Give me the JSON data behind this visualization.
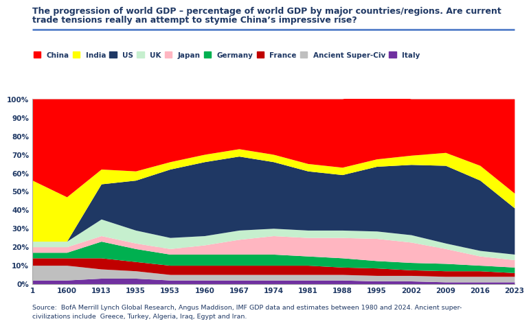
{
  "title_line1": "The progression of world GDP – percentage of world GDP by major countries/regions. Are current",
  "title_line2": "trade tensions really an attempt to stymie China’s impressive rise?",
  "source_text": "Source:  BofA Merrill Lynch Global Research, Angus Maddison, IMF GDP data and estimates between 1980 and 2024. Ancient super-\ncivilizations include  Greece, Turkey, Algeria, Iraq, Egypt and Iran.",
  "legend_labels": [
    "China",
    "India",
    "US",
    "UK",
    "Japan",
    "Germany",
    "France",
    "Ancient Super-Civ",
    "Italy"
  ],
  "colors": {
    "China": "#FF0000",
    "India": "#FFFF00",
    "US": "#1F3864",
    "UK": "#C6EFCE",
    "Japan": "#FFB6C1",
    "Germany": "#00B050",
    "France": "#C00000",
    "Ancient Super-Civ": "#BFBFBF",
    "Italy": "#7030A0"
  },
  "x_labels": [
    "1",
    "1600",
    "1913",
    "1935",
    "1953",
    "1960",
    "1967",
    "1974",
    "1981",
    "1988",
    "1995",
    "2002",
    "2009",
    "2016",
    "2023"
  ],
  "stack_order": [
    "Italy",
    "Ancient_Super_Civ",
    "France",
    "Germany",
    "Japan",
    "UK",
    "US",
    "India",
    "China"
  ],
  "label_map": {
    "Italy": "Italy",
    "Ancient_Super_Civ": "Ancient Super-Civ",
    "France": "France",
    "Germany": "Germany",
    "Japan": "Japan",
    "UK": "UK",
    "US": "US",
    "India": "India",
    "China": "China"
  },
  "data": {
    "Italy": [
      2,
      2,
      3,
      3,
      2,
      2,
      2,
      2,
      2,
      2,
      1.5,
      1.5,
      1,
      1,
      1
    ],
    "Ancient_Super_Civ": [
      8,
      8,
      5,
      4,
      3,
      3,
      3,
      3,
      3,
      3,
      3,
      3,
      3,
      3,
      3
    ],
    "France": [
      4,
      4,
      6,
      5,
      5,
      5,
      5,
      5,
      5,
      4,
      4,
      3,
      3,
      3,
      2
    ],
    "Germany": [
      3,
      3,
      9,
      7,
      6,
      6,
      6,
      6,
      5,
      5,
      4,
      4,
      4,
      3,
      3
    ],
    "Japan": [
      3,
      3,
      3,
      3,
      3,
      5,
      8,
      10,
      10,
      11,
      12,
      11,
      8,
      5,
      4
    ],
    "UK": [
      3,
      3,
      9,
      7,
      6,
      5,
      5,
      4,
      4,
      4,
      4,
      4,
      3,
      3,
      3
    ],
    "US": [
      0,
      0,
      19,
      27,
      37,
      40,
      40,
      36,
      32,
      30,
      35,
      38,
      42,
      38,
      25
    ],
    "India": [
      33,
      24,
      8,
      5,
      4,
      4,
      4,
      4,
      4,
      4,
      4,
      5,
      7,
      8,
      8
    ],
    "China": [
      44,
      53,
      38,
      39,
      34,
      30,
      27,
      30,
      35,
      37,
      36.5,
      30.5,
      29,
      36,
      51
    ]
  },
  "background_color": "#FFFFFF",
  "ylim": [
    0,
    100
  ]
}
